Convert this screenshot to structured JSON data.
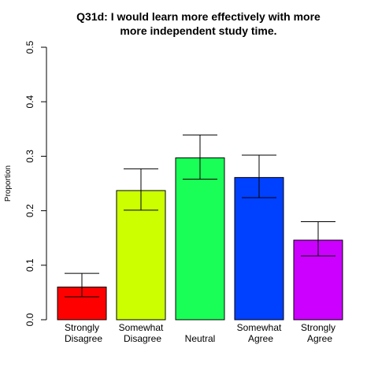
{
  "chart_data": {
    "type": "bar",
    "title_lines": [
      "Q31d: I would learn more effectively with more",
      "more independent study time."
    ],
    "ylabel": "Proportion",
    "xlabel": "",
    "ylim": [
      0,
      0.5
    ],
    "yticks": [
      0.0,
      0.1,
      0.2,
      0.3,
      0.4,
      0.5
    ],
    "ytick_labels": [
      "0.0",
      "0.1",
      "0.2",
      "0.3",
      "0.4",
      "0.5"
    ],
    "categories": [
      [
        "Strongly",
        "Disagree"
      ],
      [
        "Somewhat",
        "Disagree"
      ],
      [
        "Neutral"
      ],
      [
        "Somewhat",
        "Agree"
      ],
      [
        "Strongly",
        "Agree"
      ]
    ],
    "values": [
      0.06,
      0.237,
      0.297,
      0.261,
      0.146
    ],
    "error_low": [
      0.042,
      0.201,
      0.258,
      0.224,
      0.117
    ],
    "error_high": [
      0.085,
      0.277,
      0.339,
      0.302,
      0.18
    ],
    "colors": [
      "#ff0000",
      "#ccff00",
      "#19ff57",
      "#0040ff",
      "#cc00ff"
    ],
    "grid": false,
    "legend": "none"
  }
}
